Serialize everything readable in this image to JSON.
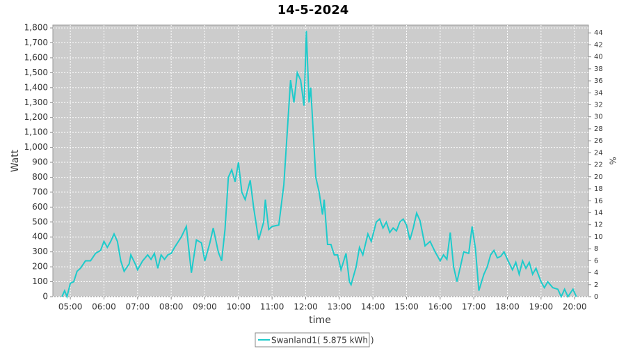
{
  "chart_data": {
    "type": "line",
    "title": "14-5-2024",
    "x_label": "time",
    "y_label": "Watt",
    "y2_label": "%",
    "xlim": [
      4.48,
      20.41
    ],
    "ylim": [
      0,
      1819
    ],
    "y2lim": [
      0,
      45.3
    ],
    "grid": true,
    "legend": "bottom",
    "xticks": [
      {
        "value": 5,
        "label": "05:00"
      },
      {
        "value": 6,
        "label": "06:00"
      },
      {
        "value": 7,
        "label": "07:00"
      },
      {
        "value": 8,
        "label": "08:00"
      },
      {
        "value": 9,
        "label": "09:00"
      },
      {
        "value": 10,
        "label": "10:00"
      },
      {
        "value": 11,
        "label": "11:00"
      },
      {
        "value": 12,
        "label": "12:00"
      },
      {
        "value": 13,
        "label": "13:00"
      },
      {
        "value": 14,
        "label": "14:00"
      },
      {
        "value": 15,
        "label": "15:00"
      },
      {
        "value": 16,
        "label": "16:00"
      },
      {
        "value": 17,
        "label": "17:00"
      },
      {
        "value": 18,
        "label": "18:00"
      },
      {
        "value": 19,
        "label": "19:00"
      },
      {
        "value": 20,
        "label": "20:00"
      }
    ],
    "yticks": [
      0,
      100,
      200,
      300,
      400,
      500,
      600,
      700,
      800,
      900,
      {
        "value": 1000,
        "label": "1,000"
      },
      {
        "value": 1100,
        "label": "1,100"
      },
      {
        "value": 1200,
        "label": "1,200"
      },
      {
        "value": 1300,
        "label": "1,300"
      },
      {
        "value": 1400,
        "label": "1,400"
      },
      {
        "value": 1500,
        "label": "1,500"
      },
      {
        "value": 1600,
        "label": "1,600"
      },
      {
        "value": 1700,
        "label": "1,700"
      },
      {
        "value": 1800,
        "label": "1,800"
      }
    ],
    "y2ticks": [
      0,
      2,
      4,
      6,
      8,
      10,
      12,
      14,
      16,
      18,
      20,
      22,
      24,
      26,
      28,
      30,
      32,
      34,
      36,
      38,
      40,
      42,
      44
    ],
    "x": [
      4.75,
      4.83,
      4.9,
      5.0,
      5.1,
      5.2,
      5.3,
      5.45,
      5.6,
      5.75,
      5.9,
      6.0,
      6.1,
      6.2,
      6.3,
      6.4,
      6.5,
      6.6,
      6.75,
      6.8,
      6.95,
      7.0,
      7.15,
      7.3,
      7.4,
      7.5,
      7.6,
      7.7,
      7.8,
      7.9,
      8.0,
      8.1,
      8.3,
      8.45,
      8.6,
      8.75,
      8.9,
      9.0,
      9.15,
      9.25,
      9.4,
      9.5,
      9.6,
      9.7,
      9.8,
      9.9,
      10.0,
      10.1,
      10.2,
      10.35,
      10.45,
      10.6,
      10.75,
      10.8,
      10.9,
      11.0,
      11.2,
      11.35,
      11.45,
      11.55,
      11.65,
      11.75,
      11.85,
      11.95,
      12.0,
      12.02,
      12.1,
      12.15,
      12.2,
      12.3,
      12.4,
      12.5,
      12.55,
      12.65,
      12.75,
      12.85,
      12.95,
      13.05,
      13.2,
      13.3,
      13.35,
      13.5,
      13.6,
      13.7,
      13.85,
      13.95,
      14.1,
      14.2,
      14.3,
      14.4,
      14.5,
      14.6,
      14.7,
      14.8,
      14.9,
      15.0,
      15.1,
      15.2,
      15.3,
      15.4,
      15.55,
      15.7,
      15.85,
      16.0,
      16.1,
      16.2,
      16.3,
      16.4,
      16.5,
      16.6,
      16.7,
      16.85,
      16.95,
      17.05,
      17.15,
      17.3,
      17.4,
      17.5,
      17.6,
      17.7,
      17.8,
      17.9,
      18.0,
      18.15,
      18.25,
      18.35,
      18.45,
      18.55,
      18.65,
      18.75,
      18.85,
      19.0,
      19.1,
      19.2,
      19.35,
      19.5,
      19.6,
      19.7,
      19.8,
      19.95,
      20.05
    ],
    "series": [
      {
        "name": "Swanland1( 5.875 kWh )",
        "color": "#1ecbcb",
        "values": [
          0,
          40,
          0,
          90,
          100,
          170,
          190,
          240,
          240,
          290,
          310,
          370,
          330,
          370,
          420,
          370,
          240,
          170,
          220,
          280,
          210,
          180,
          240,
          280,
          250,
          290,
          190,
          280,
          250,
          280,
          290,
          330,
          400,
          470,
          160,
          380,
          360,
          240,
          360,
          460,
          300,
          240,
          450,
          800,
          850,
          770,
          900,
          700,
          650,
          780,
          600,
          380,
          500,
          650,
          450,
          470,
          480,
          750,
          1100,
          1450,
          1300,
          1500,
          1450,
          1280,
          1620,
          1780,
          1300,
          1400,
          1200,
          800,
          700,
          550,
          650,
          350,
          350,
          280,
          280,
          180,
          290,
          100,
          80,
          200,
          330,
          280,
          420,
          370,
          500,
          520,
          460,
          500,
          430,
          460,
          440,
          500,
          520,
          480,
          380,
          460,
          560,
          510,
          340,
          370,
          300,
          240,
          280,
          250,
          430,
          200,
          100,
          200,
          300,
          290,
          470,
          320,
          40,
          150,
          200,
          280,
          310,
          260,
          270,
          300,
          250,
          180,
          230,
          150,
          240,
          190,
          230,
          150,
          190,
          100,
          60,
          100,
          60,
          50,
          0,
          50,
          0,
          50,
          0
        ]
      }
    ]
  }
}
